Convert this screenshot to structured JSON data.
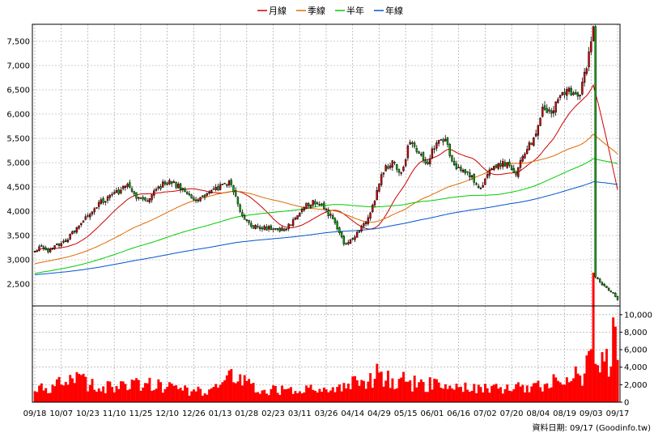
{
  "chart_data": {
    "type": "candlestick",
    "legend": [
      {
        "label": "月線",
        "color": "#cc0000"
      },
      {
        "label": "季線",
        "color": "#e06a00"
      },
      {
        "label": "半年",
        "color": "#00cc00"
      },
      {
        "label": "年線",
        "color": "#0055cc"
      }
    ],
    "x_labels": [
      "09/18",
      "10/07",
      "10/23",
      "11/10",
      "11/25",
      "12/10",
      "12/26",
      "01/13",
      "01/28",
      "02/23",
      "03/11",
      "03/26",
      "04/14",
      "04/29",
      "05/15",
      "06/01",
      "06/16",
      "07/02",
      "07/20",
      "08/04",
      "08/19",
      "09/03",
      "09/17"
    ],
    "price_axis": {
      "ticks": [
        2500,
        3000,
        3500,
        4000,
        4500,
        5000,
        5500,
        6000,
        6500,
        7000,
        7500
      ],
      "tick_labels": [
        "2,500",
        "3,000",
        "3,500",
        "4,000",
        "4,500",
        "5,000",
        "5,500",
        "6,000",
        "6,500",
        "7,000",
        "7,500"
      ],
      "range": [
        2050,
        7850
      ]
    },
    "volume_axis": {
      "ticks": [
        0,
        2000,
        4000,
        6000,
        8000,
        10000
      ],
      "tick_labels": [
        "0",
        "2,000",
        "4,000",
        "6,000",
        "8,000",
        "10,000"
      ],
      "range": [
        0,
        11000
      ]
    },
    "price_anchors": [
      [
        0,
        3200
      ],
      [
        3,
        3250
      ],
      [
        6,
        3150
      ],
      [
        10,
        3300
      ],
      [
        14,
        3400
      ],
      [
        18,
        3600
      ],
      [
        22,
        3800
      ],
      [
        26,
        4000
      ],
      [
        30,
        4200
      ],
      [
        34,
        4300
      ],
      [
        38,
        4400
      ],
      [
        42,
        4600
      ],
      [
        46,
        4300
      ],
      [
        50,
        4200
      ],
      [
        54,
        4400
      ],
      [
        58,
        4550
      ],
      [
        62,
        4600
      ],
      [
        66,
        4500
      ],
      [
        70,
        4300
      ],
      [
        73,
        4200
      ],
      [
        76,
        4300
      ],
      [
        80,
        4400
      ],
      [
        84,
        4500
      ],
      [
        88,
        4600
      ],
      [
        90,
        4400
      ],
      [
        94,
        3900
      ],
      [
        98,
        3700
      ],
      [
        102,
        3650
      ],
      [
        106,
        3650
      ],
      [
        110,
        3600
      ],
      [
        114,
        3650
      ],
      [
        118,
        3850
      ],
      [
        122,
        4100
      ],
      [
        126,
        4200
      ],
      [
        130,
        4100
      ],
      [
        134,
        3900
      ],
      [
        137,
        3650
      ],
      [
        140,
        3350
      ],
      [
        143,
        3400
      ],
      [
        146,
        3550
      ],
      [
        149,
        3700
      ],
      [
        152,
        3950
      ],
      [
        155,
        4400
      ],
      [
        158,
        4850
      ],
      [
        162,
        5000
      ],
      [
        166,
        4800
      ],
      [
        170,
        5450
      ],
      [
        174,
        5200
      ],
      [
        178,
        5000
      ],
      [
        182,
        5450
      ],
      [
        186,
        5450
      ],
      [
        190,
        4900
      ],
      [
        194,
        4850
      ],
      [
        198,
        4700
      ],
      [
        202,
        4450
      ],
      [
        206,
        4800
      ],
      [
        210,
        5000
      ],
      [
        214,
        4950
      ],
      [
        218,
        4800
      ],
      [
        222,
        5200
      ],
      [
        226,
        5500
      ],
      [
        230,
        6100
      ],
      [
        234,
        6000
      ],
      [
        238,
        6400
      ],
      [
        242,
        6500
      ],
      [
        246,
        6300
      ],
      [
        250,
        7000
      ],
      [
        252,
        7500
      ],
      [
        253,
        7800
      ],
      [
        254,
        2650
      ],
      [
        256,
        2550
      ],
      [
        258,
        2450
      ],
      [
        260,
        2350
      ],
      [
        262,
        2300
      ],
      [
        264,
        2200
      ]
    ],
    "volume_anchors": [
      [
        0,
        1200
      ],
      [
        10,
        2200
      ],
      [
        20,
        2500
      ],
      [
        30,
        1800
      ],
      [
        40,
        2000
      ],
      [
        50,
        2200
      ],
      [
        60,
        1700
      ],
      [
        70,
        1300
      ],
      [
        80,
        1200
      ],
      [
        90,
        3100
      ],
      [
        100,
        1400
      ],
      [
        110,
        1400
      ],
      [
        120,
        1600
      ],
      [
        130,
        1500
      ],
      [
        136,
        1300
      ],
      [
        140,
        2300
      ],
      [
        150,
        2300
      ],
      [
        155,
        3400
      ],
      [
        160,
        2600
      ],
      [
        166,
        2700
      ],
      [
        170,
        2200
      ],
      [
        180,
        2000
      ],
      [
        190,
        1600
      ],
      [
        200,
        1800
      ],
      [
        210,
        1500
      ],
      [
        220,
        1700
      ],
      [
        230,
        2200
      ],
      [
        240,
        2800
      ],
      [
        248,
        3200
      ],
      [
        252,
        5500
      ],
      [
        253,
        10500
      ],
      [
        254,
        4000
      ],
      [
        256,
        5000
      ],
      [
        258,
        5500
      ],
      [
        260,
        3000
      ],
      [
        262,
        8500
      ],
      [
        264,
        5000
      ]
    ],
    "moving_average_windows": {
      "月線": 20,
      "季線": 60,
      "半年": 120,
      "年線": 240
    },
    "ma_prehistory": {
      "季線": 2650,
      "半年": 2250,
      "年線": 2200
    },
    "credit": "資料日期: 09/17 (Goodinfo.tw)"
  }
}
